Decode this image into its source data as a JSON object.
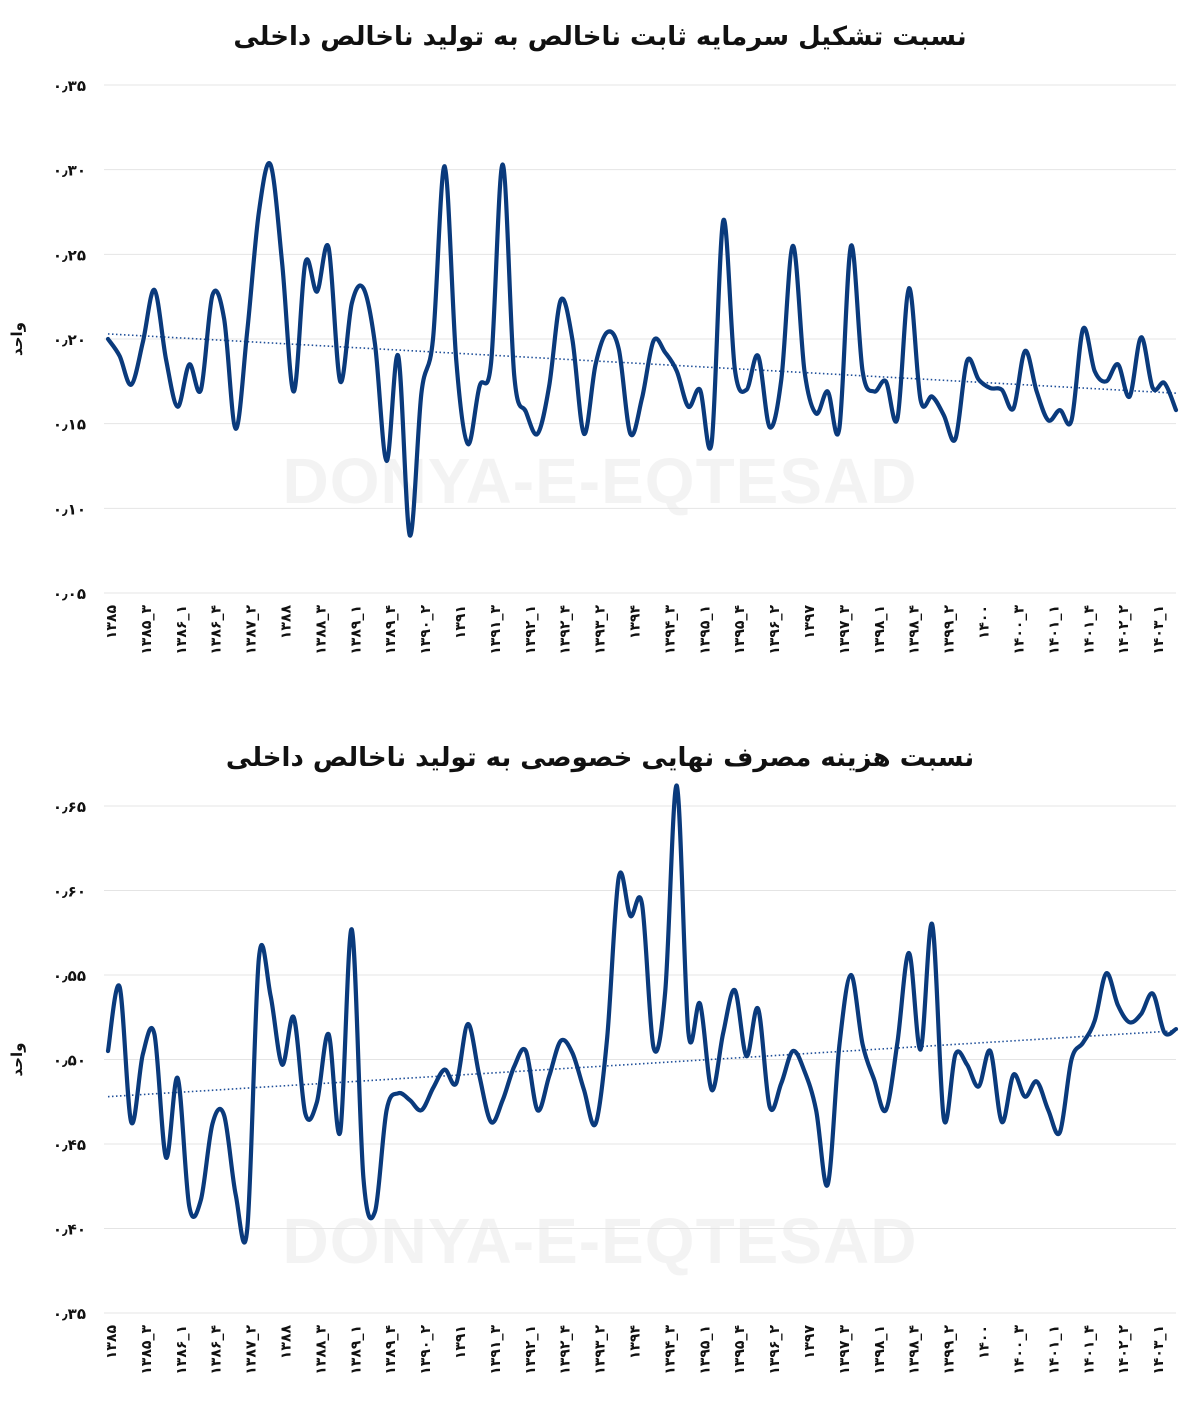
{
  "watermark": "DONYA-E-EQTESAD",
  "colors": {
    "line": "#0a3a7c",
    "trend": "#1f4f99",
    "grid": "#e4e4e4"
  },
  "x_ticks": [
    "۱۳۸۵",
    "۱۳۸۵_۳",
    "۱۳۸۶_۱",
    "۱۳۸۶_۴",
    "۱۳۸۷_۲",
    "۱۳۸۸",
    "۱۳۸۸_۳",
    "۱۳۸۹_۱",
    "۱۳۸۹_۴",
    "۱۳۹۰_۲",
    "۱۳۹۱",
    "۱۳۹۱_۳",
    "۱۳۹۲_۱",
    "۱۳۹۲_۴",
    "۱۳۹۳_۲",
    "۱۳۹۴",
    "۱۳۹۴_۳",
    "۱۳۹۵_۱",
    "۱۳۹۵_۴",
    "۱۳۹۶_۲",
    "۱۳۹۷",
    "۱۳۹۷_۳",
    "۱۳۹۸_۱",
    "۱۳۹۸_۴",
    "۱۳۹۹_۲",
    "۱۴۰۰",
    "۱۴۰۰_۳",
    "۱۴۰۱_۱",
    "۱۴۰۱_۴",
    "۱۴۰۲_۲",
    "۱۴۰۳_۱"
  ],
  "chart_data": [
    {
      "type": "line",
      "title": "نسبت تشکیل سرمایه ثابت ناخالص به تولید ناخالص داخلی",
      "ylabel": "واحد",
      "ylim": [
        0.05,
        0.35
      ],
      "yticks": [
        "۰٫۰۵",
        "۰٫۱۰",
        "۰٫۱۵",
        "۰٫۲۰",
        "۰٫۲۵",
        "۰٫۳۰",
        "۰٫۳۵"
      ],
      "trendline": [
        0.203,
        0.168
      ],
      "series": [
        {
          "values": [
            0.2,
            0.19,
            0.173,
            0.198,
            0.229,
            0.188,
            0.16,
            0.185,
            0.17,
            0.226,
            0.212,
            0.147,
            0.205,
            0.275,
            0.303,
            0.245,
            0.169,
            0.245,
            0.228,
            0.254,
            0.175,
            0.221,
            0.23,
            0.197,
            0.128,
            0.19,
            0.084,
            0.168,
            0.2,
            0.302,
            0.187,
            0.138,
            0.172,
            0.186,
            0.303,
            0.178,
            0.157,
            0.144,
            0.172,
            0.223,
            0.2,
            0.144,
            0.185,
            0.204,
            0.194,
            0.144,
            0.165,
            0.199,
            0.192,
            0.181,
            0.16,
            0.17,
            0.139,
            0.27,
            0.182,
            0.17,
            0.19,
            0.148,
            0.176,
            0.255,
            0.181,
            0.156,
            0.169,
            0.147,
            0.255,
            0.181,
            0.169,
            0.175,
            0.153,
            0.23,
            0.164,
            0.166,
            0.155,
            0.141,
            0.187,
            0.176,
            0.171,
            0.17,
            0.159,
            0.193,
            0.169,
            0.152,
            0.158,
            0.152,
            0.206,
            0.181,
            0.175,
            0.185,
            0.166,
            0.201,
            0.171,
            0.174,
            0.158
          ]
        }
      ]
    },
    {
      "type": "line",
      "title": "نسبت هزینه مصرف نهایی خصوصی به تولید ناخالص داخلی",
      "ylabel": "واحد",
      "ylim": [
        0.35,
        0.65
      ],
      "yticks": [
        "۰٫۳۵",
        "۰٫۴۰",
        "۰٫۴۵",
        "۰٫۵۰",
        "۰٫۵۵",
        "۰٫۶۰",
        "۰٫۶۵"
      ],
      "trendline": [
        0.478,
        0.517
      ],
      "series": [
        {
          "values": [
            0.505,
            0.543,
            0.463,
            0.503,
            0.515,
            0.442,
            0.489,
            0.413,
            0.417,
            0.462,
            0.467,
            0.42,
            0.4,
            0.56,
            0.538,
            0.497,
            0.525,
            0.468,
            0.475,
            0.515,
            0.457,
            0.577,
            0.43,
            0.41,
            0.47,
            0.48,
            0.476,
            0.47,
            0.483,
            0.494,
            0.486,
            0.521,
            0.49,
            0.463,
            0.476,
            0.496,
            0.505,
            0.47,
            0.49,
            0.511,
            0.504,
            0.482,
            0.462,
            0.513,
            0.608,
            0.585,
            0.592,
            0.507,
            0.54,
            0.662,
            0.516,
            0.533,
            0.482,
            0.516,
            0.541,
            0.502,
            0.53,
            0.472,
            0.486,
            0.505,
            0.493,
            0.47,
            0.426,
            0.508,
            0.55,
            0.509,
            0.488,
            0.47,
            0.51,
            0.563,
            0.506,
            0.58,
            0.465,
            0.503,
            0.497,
            0.484,
            0.505,
            0.463,
            0.491,
            0.478,
            0.487,
            0.47,
            0.457,
            0.5,
            0.51,
            0.523,
            0.551,
            0.532,
            0.522,
            0.527,
            0.539,
            0.516,
            0.518
          ]
        }
      ]
    }
  ]
}
